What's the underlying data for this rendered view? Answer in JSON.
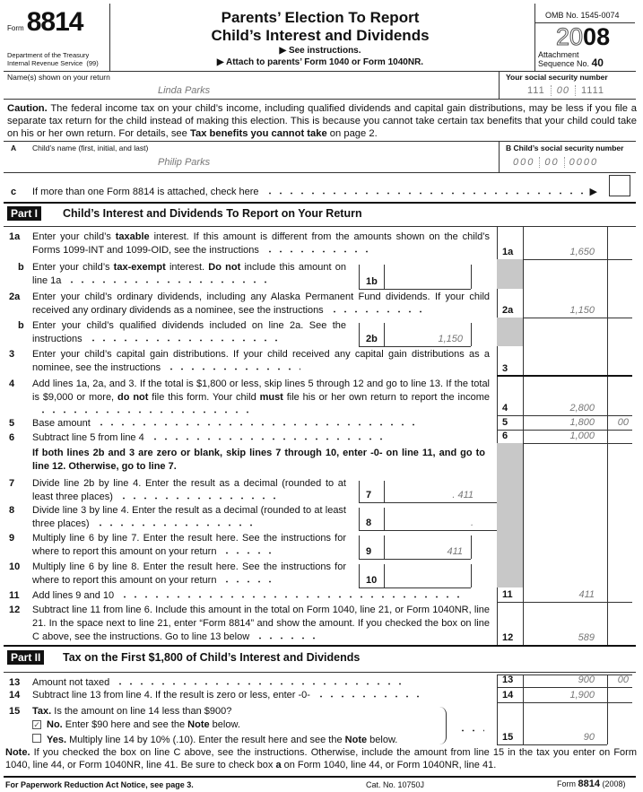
{
  "header": {
    "form_word": "Form",
    "form_number": "8814",
    "dept": "Department of the Treasury",
    "irs": "Internal Revenue Service",
    "irs_code": "(99)",
    "title_1": "Parents’ Election To Report",
    "title_2": "Child’s Interest and Dividends",
    "see_instr": "▶ See instructions.",
    "attach": "▶ Attach to parents’ Form 1040 or Form 1040NR.",
    "omb": "OMB No. 1545-0074",
    "year_outline": "20",
    "year_bold": "08",
    "attachment": "Attachment",
    "sequence": "Sequence No.",
    "sequence_no": "40"
  },
  "names": {
    "label": "Name(s) shown on your return",
    "value": "Linda Parks",
    "ssn_label": "Your social security number",
    "ssn": [
      "111",
      "00",
      "1111"
    ]
  },
  "caution": [
    [
      "Caution.",
      true
    ],
    [
      " The federal income tax on your child’s income, including qualified dividends and capital gain distributions, may be less if you file a separate tax return for the child instead of making this election. This is because you cannot take certain tax benefits that your child could take on his or her own return. For details, see ",
      false
    ],
    [
      "Tax benefits you cannot take",
      true
    ],
    [
      " on page 2.",
      false
    ]
  ],
  "child": {
    "a_letter": "A",
    "name_label": "Child’s name (first, initial, and last)",
    "name": "Philip Parks",
    "b_label": "B  Child’s social security number",
    "ssn": [
      "000",
      "00",
      "0000"
    ]
  },
  "line_c": {
    "letter": "c",
    "text": "If more than one Form 8814 is attached, check here",
    "arrow": "▶",
    "checked": false
  },
  "part1": {
    "badge": "Part I",
    "title": "Child’s Interest and Dividends To Report on Your Return"
  },
  "part2": {
    "badge": "Part II",
    "title": "Tax on the First $1,800 of Child’s Interest and Dividends"
  },
  "lines": {
    "l1a": {
      "num": "1a",
      "box": "1a",
      "amount": "1,650",
      "segs": [
        [
          "Enter your child’s ",
          false
        ],
        [
          "taxable",
          true
        ],
        [
          " interest. If this amount is different from the amounts shown on the child’s Forms 1099-INT and 1099-OID, see the instructions",
          false
        ]
      ]
    },
    "l1b": {
      "num": "b",
      "box": "1b",
      "amount": "",
      "segs": [
        [
          "Enter your child’s ",
          false
        ],
        [
          "tax-exempt",
          true
        ],
        [
          " interest. ",
          false
        ],
        [
          "Do not",
          true
        ],
        [
          " include this amount on line 1a",
          false
        ]
      ]
    },
    "l2a": {
      "num": "2a",
      "box": "2a",
      "amount": "1,150",
      "segs": [
        [
          "Enter your child’s ordinary dividends, including any Alaska Permanent Fund dividends. If your child received any ordinary dividends as a nominee, see the instructions",
          false
        ]
      ]
    },
    "l2b": {
      "num": "b",
      "box": "2b",
      "amount": "1,150",
      "segs": [
        [
          "Enter your child’s qualified dividends included on line 2a. See the instructions",
          false
        ]
      ]
    },
    "l3": {
      "num": "3",
      "box": "3",
      "amount": "",
      "segs": [
        [
          "Enter your child’s capital gain distributions. If your child received any capital gain distributions as a nominee, see the instructions",
          false
        ]
      ]
    },
    "l4": {
      "num": "4",
      "box": "4",
      "amount": "2,800",
      "segs": [
        [
          "Add lines 1a, 2a, and 3. If the total is $1,800 or less, skip lines 5 through 12 and go to line 13. If the total is $9,000 or more, ",
          false
        ],
        [
          "do not",
          true
        ],
        [
          " file this form. Your child ",
          false
        ],
        [
          "must",
          true
        ],
        [
          " file his or her own return to report the income",
          false
        ]
      ]
    },
    "l5": {
      "num": "5",
      "box": "5",
      "amount": "1,800",
      "cents": "00",
      "segs": [
        [
          "Base amount",
          false
        ]
      ]
    },
    "l6": {
      "num": "6",
      "box": "6",
      "amount": "1,000",
      "segs": [
        [
          "Subtract line 5 from line 4",
          false
        ]
      ]
    },
    "skip_note": "If both lines 2b and 3 are zero or blank, skip lines 7 through 10, enter -0- on line 11, and go to line 12. Otherwise, go to line 7.",
    "l7": {
      "num": "7",
      "box": "7",
      "amount": ". 411",
      "segs": [
        [
          "Divide line 2b by line 4. Enter the result as a decimal (rounded to at least three places)",
          false
        ]
      ]
    },
    "l8": {
      "num": "8",
      "box": "8",
      "amount": ".",
      "segs": [
        [
          "Divide line 3 by line 4. Enter the result as a decimal (rounded to at least three places)",
          false
        ]
      ]
    },
    "l9": {
      "num": "9",
      "box": "9",
      "amount": "411",
      "segs": [
        [
          "Multiply line 6 by line 7. Enter the result here. See the instructions for where to report this amount on your return",
          false
        ]
      ]
    },
    "l10": {
      "num": "10",
      "box": "10",
      "amount": "",
      "segs": [
        [
          "Multiply line 6 by line 8. Enter the result here. See the instructions for where to report this amount on your return",
          false
        ]
      ]
    },
    "l11": {
      "num": "11",
      "box": "11",
      "amount": "411",
      "segs": [
        [
          "Add lines 9 and 10",
          false
        ]
      ]
    },
    "l12": {
      "num": "12",
      "box": "12",
      "amount": "589",
      "segs": [
        [
          "Subtract line 11 from line 6. Include this amount in the total on Form 1040, line 21, or Form 1040NR, line 21. In the space next to line 21, enter “Form 8814” and show the amount. If you checked the box on line C above, see the instructions. Go to line 13 below",
          false
        ]
      ]
    },
    "l13": {
      "num": "13",
      "box": "13",
      "amount": "900",
      "cents": "00",
      "segs": [
        [
          "Amount not taxed",
          false
        ]
      ]
    },
    "l14": {
      "num": "14",
      "box": "14",
      "amount": "1,900",
      "segs": [
        [
          "Subtract line 13 from line 4. If the result is zero or less, enter -0-",
          false
        ]
      ]
    },
    "l15": {
      "num": "15",
      "box": "15",
      "amount": "90",
      "segs": [
        [
          "Tax.",
          true
        ],
        [
          "  Is the amount on line 14 less than $900?",
          false
        ]
      ],
      "no": [
        [
          "No.",
          true
        ],
        [
          "  Enter $90 here and see the ",
          false
        ],
        [
          "Note",
          true
        ],
        [
          " below.",
          false
        ]
      ],
      "no_checked": true,
      "yes": [
        [
          "Yes.",
          true
        ],
        [
          "  Multiply line 14 by 10% (.10). Enter the result here and see the ",
          false
        ],
        [
          "Note",
          true
        ],
        [
          " below.",
          false
        ]
      ],
      "yes_checked": false
    }
  },
  "note": [
    [
      "Note.",
      true
    ],
    [
      " If you checked the box on line C above, see the instructions. Otherwise, include the amount from line 15 in the tax you enter on Form 1040, line 44, or Form 1040NR, line 41. Be sure to check box ",
      false
    ],
    [
      "a",
      true
    ],
    [
      " on Form 1040, line 44, or Form 1040NR, line 41.",
      false
    ]
  ],
  "footer": {
    "paperwork": "For Paperwork Reduction Act Notice, see page 3.",
    "cat": "Cat. No. 10750J",
    "form_word": "Form",
    "form_number": "8814",
    "year": "(2008)"
  }
}
